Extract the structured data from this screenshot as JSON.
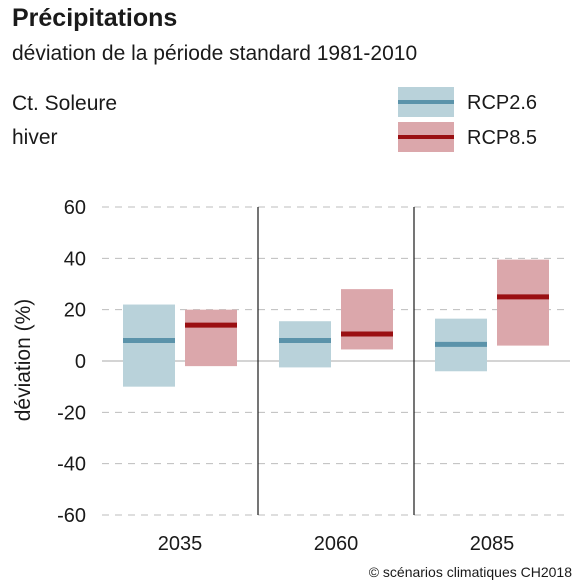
{
  "title": "Précipitations",
  "subtitle": "déviation de la période standard 1981-2010",
  "region": "Ct. Soleure",
  "season": "hiver",
  "source": "© scénarios climatiques CH2018",
  "chart_data": {
    "type": "bar",
    "categories": [
      "2035",
      "2060",
      "2085"
    ],
    "ylabel": "déviation (%)",
    "ylim": [
      -60,
      60
    ],
    "yticks": [
      60,
      40,
      20,
      0,
      -20,
      -40,
      -60
    ],
    "legend_position": "top-right",
    "series": [
      {
        "name": "RCP2.6",
        "box_color": "#b9d2da",
        "median_color": "#5b93aa",
        "low": [
          -10,
          -2.5,
          -4
        ],
        "high": [
          22,
          15.5,
          16.5
        ],
        "median": [
          8,
          8,
          6.5
        ]
      },
      {
        "name": "RCP8.5",
        "box_color": "#dba7ab",
        "median_color": "#9a0f12",
        "low": [
          -2,
          4.5,
          6
        ],
        "high": [
          20,
          28,
          39.5
        ],
        "median": [
          14,
          10.5,
          25
        ]
      }
    ]
  }
}
